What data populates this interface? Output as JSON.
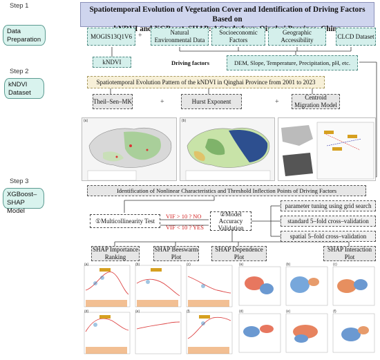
{
  "title": {
    "line1": "Spatiotemporal Evolution of Vegetation Cover and Identification of Driving Factors Based on",
    "line2": "kNDVI and XGBoost–SHAP: A Study from Qinghai Province, China"
  },
  "steps": [
    {
      "label": "Step 1",
      "name": "Data Preparation"
    },
    {
      "label": "Step 2",
      "name": "kNDVI Dataset"
    },
    {
      "label": "Step 3",
      "name": "XGBoost–SHAP Model"
    }
  ],
  "data_sources": {
    "modis": "MOGIS13Q1V6",
    "natural": "Natural Environmental Data",
    "socio": "Socioeconomic Factors",
    "geo": "Geographic Accessibility",
    "clcd": "CLCD Dataset",
    "kndvi": "kNDVI",
    "driving_label": "Driving factors",
    "driving_value": "DEM, Slope, Temperature, Precipitation, pH, etc."
  },
  "step2": {
    "banner": "Spatiotemporal Evolution Pattern of the kNDVI in Qinghai Province from 2001 to 2023",
    "methods": [
      "Theil–Sen–MK",
      "Hurst Exponent",
      "Centroid Migration Model"
    ]
  },
  "step3": {
    "banner": "Identification of Nonlinear Characteristics and Threshold Inflection Points of Driving Factors",
    "multicollinearity": "①Multicollinearity Test",
    "vif_no": "VIF > 10 ?  NO",
    "vif_yes": "VIF < 10 ?  YES",
    "validation": "②Model Accuracy Validation",
    "options": [
      "parameter tuning using grid search",
      "standard 5–fold cross–validation",
      "spatial 5–fold cross–validation"
    ],
    "shap": [
      "SHAP Importance Ranking",
      "SHAP Beeswarm Plot",
      "SHAP Dependence Plot",
      "SHAP Interaction Plot"
    ]
  },
  "symbols": {
    "plus": "+"
  },
  "panel_letters": [
    "(a)",
    "(b)",
    "(c)",
    "(d)",
    "(e)",
    "(f)"
  ],
  "colors": {
    "title_bg": "#cfd5ee",
    "data_box": "#d4efeb",
    "step_cyl": "#d9f3ee",
    "cream": "#f7f0d8",
    "gray": "#e6e6e6",
    "red": "#d42020"
  }
}
